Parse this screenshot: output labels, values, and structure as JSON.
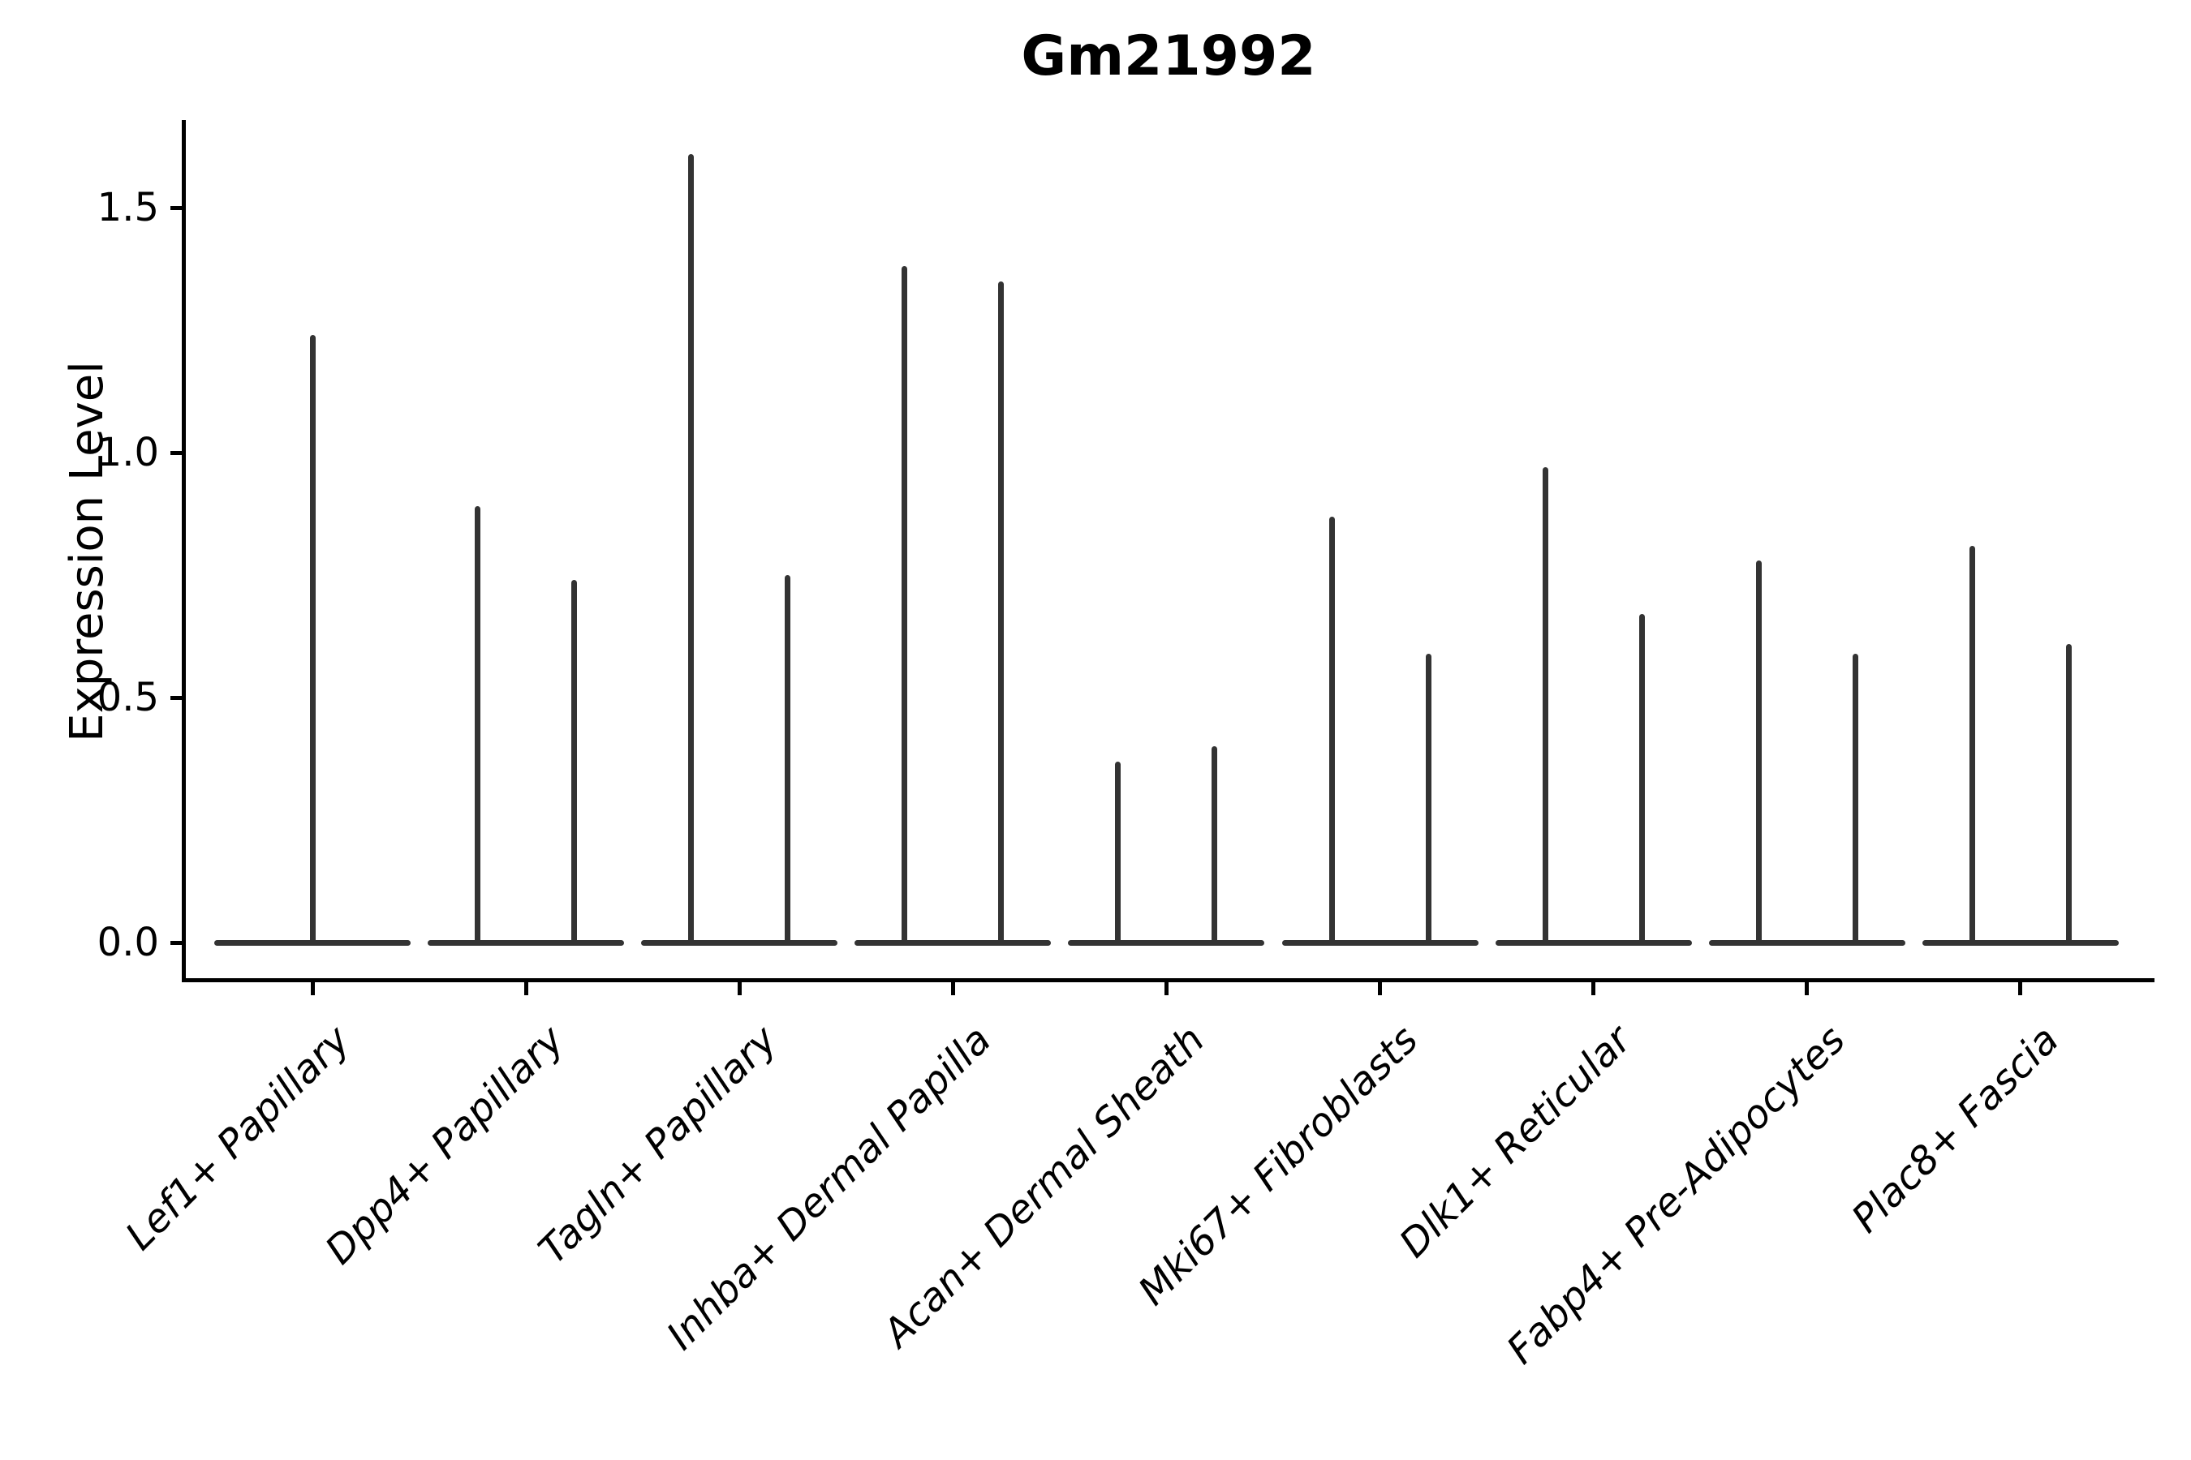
{
  "chart_data": {
    "type": "violin",
    "title": "Gm21992",
    "ylabel": "Expression Level",
    "xlabel": "",
    "ylim": [
      -0.08,
      1.68
    ],
    "grid": false,
    "legend": false,
    "yticks": [
      {
        "label": "0.0",
        "value": 0.0
      },
      {
        "label": "0.5",
        "value": 0.5
      },
      {
        "label": "1.0",
        "value": 1.0
      },
      {
        "label": "1.5",
        "value": 1.5
      }
    ],
    "categories": [
      "Lef1+ Papillary",
      "Dpp4+ Papillary",
      "Tagln+ Papillary",
      "Inhba+ Dermal Papilla",
      "Acan+ Dermal Sheath",
      "Mki67+ Fibroblasts",
      "Dlk1+ Reticular",
      "Fabp4+ Pre-Adipocytes",
      "Plac8+ Fascia"
    ],
    "violins": [
      {
        "category": "Lef1+ Papillary",
        "spike_max_expression": [
          1.24
        ]
      },
      {
        "category": "Dpp4+ Papillary",
        "spike_max_expression": [
          0.89,
          0.74
        ]
      },
      {
        "category": "Tagln+ Papillary",
        "spike_max_expression": [
          1.61,
          0.75
        ]
      },
      {
        "category": "Inhba+ Dermal Papilla",
        "spike_max_expression": [
          1.38,
          1.35
        ]
      },
      {
        "category": "Acan+ Dermal Sheath",
        "spike_max_expression": [
          0.37,
          0.4
        ]
      },
      {
        "category": "Mki67+ Fibroblasts",
        "spike_max_expression": [
          0.87,
          0.59
        ]
      },
      {
        "category": "Dlk1+ Reticular",
        "spike_max_expression": [
          0.97,
          0.67
        ]
      },
      {
        "category": "Fabp4+ Pre-Adipocytes",
        "spike_max_expression": [
          0.78,
          0.59
        ]
      },
      {
        "category": "Plac8+ Fascia",
        "spike_max_expression": [
          0.81,
          0.61
        ]
      }
    ],
    "note": "Expression concentrated at 0: each violin is a flat base at y=0 with a thin spike reaching the listed maximum expression value; first category has a single centered violin, all others have two sub-violins.",
    "colors": {
      "violin_stroke": "#333333",
      "axis": "#000000",
      "background": "#ffffff"
    }
  }
}
